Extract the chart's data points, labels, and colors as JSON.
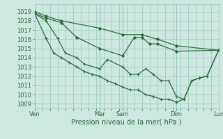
{
  "xlabel": "Pression niveau de la mer( hPa )",
  "background_color": "#cce8e0",
  "grid_color": "#9ac8bc",
  "line_color": "#2d6b3c",
  "ylim": [
    1008.5,
    1019.8
  ],
  "yticks": [
    1009,
    1010,
    1011,
    1012,
    1013,
    1014,
    1015,
    1016,
    1017,
    1018,
    1019
  ],
  "day_labels": [
    "Ven",
    "Mar",
    "Sam",
    "Dim",
    "Lun"
  ],
  "day_positions": [
    0,
    8.5,
    11.5,
    18.5,
    24
  ],
  "xlim": [
    0,
    24
  ],
  "lines": [
    {
      "x": [
        0,
        1.5,
        3.5,
        8.5,
        11.5,
        14,
        16,
        18.5,
        24
      ],
      "y": [
        1019.0,
        1018.5,
        1018.0,
        1017.2,
        1016.5,
        1016.5,
        1016.0,
        1015.3,
        1014.8
      ],
      "marker": "D",
      "markersize": 2.0
    },
    {
      "x": [
        0,
        1.5,
        3.5,
        5.5,
        8.5,
        11.5,
        13,
        14,
        15,
        16,
        18.5,
        24
      ],
      "y": [
        1018.8,
        1018.3,
        1017.8,
        1016.2,
        1015.0,
        1014.2,
        1016.2,
        1016.2,
        1015.5,
        1015.5,
        1014.7,
        1014.8
      ],
      "marker": "D",
      "markersize": 2.0
    },
    {
      "x": [
        0,
        1.5,
        3.0,
        4.0,
        5.5,
        6.5,
        8.5,
        9.5,
        11.5,
        12.5,
        13.5,
        14.5,
        15.5,
        16.5,
        17.5,
        18.5,
        19.5,
        20.5,
        21.5,
        22.5,
        24
      ],
      "y": [
        1018.8,
        1018.0,
        1016.1,
        1014.5,
        1014.0,
        1013.3,
        1012.8,
        1013.8,
        1013.0,
        1012.2,
        1012.2,
        1012.8,
        1012.2,
        1011.5,
        1011.5,
        1009.8,
        1009.5,
        1011.5,
        1011.8,
        1012.0,
        1014.8
      ],
      "marker": "+",
      "markersize": 3.5
    },
    {
      "x": [
        0,
        1.5,
        2.5,
        3.5,
        4.5,
        5.5,
        6.5,
        7.5,
        8.5,
        9.5,
        10.5,
        11.5,
        12.5,
        13.5,
        14.5,
        15.5,
        16.5,
        17.5,
        18.5,
        19.5,
        20.5,
        21.5,
        22.5,
        24
      ],
      "y": [
        1018.8,
        1016.1,
        1014.5,
        1014.0,
        1013.5,
        1013.0,
        1012.5,
        1012.2,
        1012.0,
        1011.5,
        1011.2,
        1010.8,
        1010.5,
        1010.5,
        1010.0,
        1009.8,
        1009.5,
        1009.5,
        1009.2,
        1009.5,
        1011.5,
        1011.8,
        1012.0,
        1014.8
      ],
      "marker": "+",
      "markersize": 3.5
    }
  ],
  "figsize": [
    3.2,
    2.0
  ],
  "dpi": 100
}
